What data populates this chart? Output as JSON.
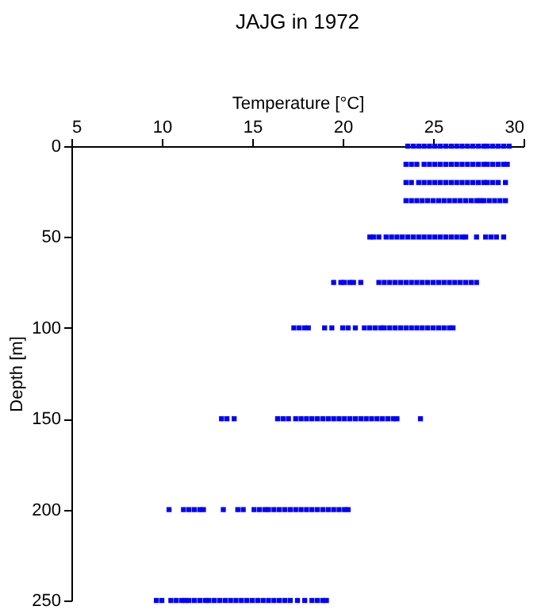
{
  "chart_data": {
    "type": "scatter",
    "title": "JAJG in 1972",
    "xlabel": "Temperature [°C]",
    "ylabel": "Depth [m]",
    "xlim": [
      5,
      30
    ],
    "xticks": [
      5,
      10,
      15,
      20,
      25,
      30
    ],
    "ylim": [
      250,
      0
    ],
    "yticks": [
      0,
      50,
      100,
      150,
      200,
      250
    ],
    "grid": false,
    "marker": "square",
    "legend": false,
    "series": [
      {
        "color": "#0000ff",
        "x": [
          23.6,
          23.9,
          24.2,
          24.5,
          24.8,
          25.1,
          25.4,
          25.7,
          26.0,
          26.3,
          26.6,
          26.9,
          27.2,
          27.5,
          27.8,
          28.0,
          28.3,
          28.6,
          28.9,
          29.2
        ],
        "values": [
          0,
          0,
          0,
          0,
          0,
          0,
          0,
          0,
          0,
          0,
          0,
          0,
          0,
          0,
          0,
          0,
          0,
          0,
          0,
          0
        ]
      },
      {
        "color": "#0000ff",
        "x": [
          23.5,
          23.8,
          24.1,
          24.5,
          24.8,
          25.1,
          25.4,
          25.7,
          26.0,
          26.3,
          26.6,
          26.9,
          27.2,
          27.5,
          27.8,
          28.0,
          28.3,
          28.6,
          28.9,
          29.1
        ],
        "values": [
          10,
          10,
          10,
          10,
          10,
          10,
          10,
          10,
          10,
          10,
          10,
          10,
          10,
          10,
          10,
          10,
          10,
          10,
          10,
          10
        ]
      },
      {
        "color": "#0000ff",
        "x": [
          23.5,
          23.8,
          24.2,
          24.5,
          24.8,
          25.1,
          25.4,
          25.7,
          26.0,
          26.3,
          26.6,
          26.9,
          27.2,
          27.5,
          27.8,
          28.0,
          28.3,
          28.6,
          29.0
        ],
        "values": [
          20,
          20,
          20,
          20,
          20,
          20,
          20,
          20,
          20,
          20,
          20,
          20,
          20,
          20,
          20,
          20,
          20,
          20,
          20
        ]
      },
      {
        "color": "#0000ff",
        "x": [
          23.5,
          23.8,
          24.1,
          24.4,
          24.7,
          25.0,
          25.3,
          25.6,
          25.9,
          26.2,
          26.5,
          26.8,
          27.1,
          27.4,
          27.6,
          27.8,
          28.1,
          28.4,
          28.7,
          29.0
        ],
        "values": [
          30,
          30,
          30,
          30,
          30,
          30,
          30,
          30,
          30,
          30,
          30,
          30,
          30,
          30,
          30,
          30,
          30,
          30,
          30,
          30
        ]
      },
      {
        "color": "#0000ff",
        "x": [
          21.5,
          21.7,
          22.0,
          22.4,
          22.7,
          23.0,
          23.3,
          23.6,
          23.9,
          24.2,
          24.5,
          24.8,
          25.1,
          25.4,
          25.7,
          26.0,
          26.3,
          26.6,
          26.8,
          27.4,
          27.9,
          28.2,
          28.5,
          28.9
        ],
        "values": [
          50,
          50,
          50,
          50,
          50,
          50,
          50,
          50,
          50,
          50,
          50,
          50,
          50,
          50,
          50,
          50,
          50,
          50,
          50,
          50,
          50,
          50,
          50,
          50
        ]
      },
      {
        "color": "#0000ff",
        "x": [
          19.5,
          19.9,
          20.1,
          20.4,
          20.6,
          21.0,
          22.0,
          22.3,
          22.6,
          22.9,
          23.2,
          23.5,
          23.8,
          24.1,
          24.4,
          24.7,
          25.0,
          25.3,
          25.6,
          25.9,
          26.2,
          26.5,
          26.8,
          27.1,
          27.4
        ],
        "values": [
          75,
          75,
          75,
          75,
          75,
          75,
          75,
          75,
          75,
          75,
          75,
          75,
          75,
          75,
          75,
          75,
          75,
          75,
          75,
          75,
          75,
          75,
          75,
          75,
          75
        ]
      },
      {
        "color": "#0000ff",
        "x": [
          17.3,
          17.6,
          17.9,
          18.1,
          19.0,
          19.4,
          20.0,
          20.3,
          20.7,
          21.2,
          21.5,
          21.8,
          22.1,
          22.3,
          22.6,
          22.9,
          23.2,
          23.5,
          23.8,
          24.1,
          24.4,
          24.7,
          25.0,
          25.3,
          25.6,
          25.9,
          26.1
        ],
        "values": [
          100,
          100,
          100,
          100,
          100,
          100,
          100,
          100,
          100,
          100,
          100,
          100,
          100,
          100,
          100,
          100,
          100,
          100,
          100,
          100,
          100,
          100,
          100,
          100,
          100,
          100,
          100
        ]
      },
      {
        "color": "#0000ff",
        "x": [
          13.3,
          13.6,
          14.0,
          16.4,
          16.7,
          17.0,
          17.4,
          17.7,
          18.0,
          18.3,
          18.6,
          18.9,
          19.2,
          19.5,
          19.8,
          20.1,
          20.4,
          20.7,
          21.0,
          21.3,
          21.6,
          21.9,
          22.2,
          22.5,
          22.8,
          23.0,
          24.3
        ],
        "values": [
          150,
          150,
          150,
          150,
          150,
          150,
          150,
          150,
          150,
          150,
          150,
          150,
          150,
          150,
          150,
          150,
          150,
          150,
          150,
          150,
          150,
          150,
          150,
          150,
          150,
          150,
          150
        ]
      },
      {
        "color": "#0000ff",
        "x": [
          10.4,
          11.2,
          11.5,
          11.8,
          12.1,
          12.3,
          13.4,
          14.2,
          14.5,
          15.1,
          15.4,
          15.7,
          15.9,
          16.2,
          16.5,
          16.8,
          17.1,
          17.4,
          17.7,
          18.0,
          18.3,
          18.6,
          18.9,
          19.2,
          19.5,
          19.8,
          20.1,
          20.3
        ],
        "values": [
          200,
          200,
          200,
          200,
          200,
          200,
          200,
          200,
          200,
          200,
          200,
          200,
          200,
          200,
          200,
          200,
          200,
          200,
          200,
          200,
          200,
          200,
          200,
          200,
          200,
          200,
          200,
          200
        ]
      },
      {
        "color": "#0000ff",
        "x": [
          9.7,
          10.0,
          10.5,
          10.8,
          11.1,
          11.3,
          11.5,
          11.8,
          12.1,
          12.4,
          12.6,
          12.9,
          13.2,
          13.5,
          13.8,
          14.1,
          14.4,
          14.7,
          15.0,
          15.3,
          15.6,
          15.9,
          16.2,
          16.5,
          16.8,
          17.1,
          17.5,
          17.9,
          18.3,
          18.6,
          18.9,
          19.1
        ],
        "values": [
          250,
          250,
          250,
          250,
          250,
          250,
          250,
          250,
          250,
          250,
          250,
          250,
          250,
          250,
          250,
          250,
          250,
          250,
          250,
          250,
          250,
          250,
          250,
          250,
          250,
          250,
          250,
          250,
          250,
          250,
          250,
          250
        ]
      }
    ]
  }
}
